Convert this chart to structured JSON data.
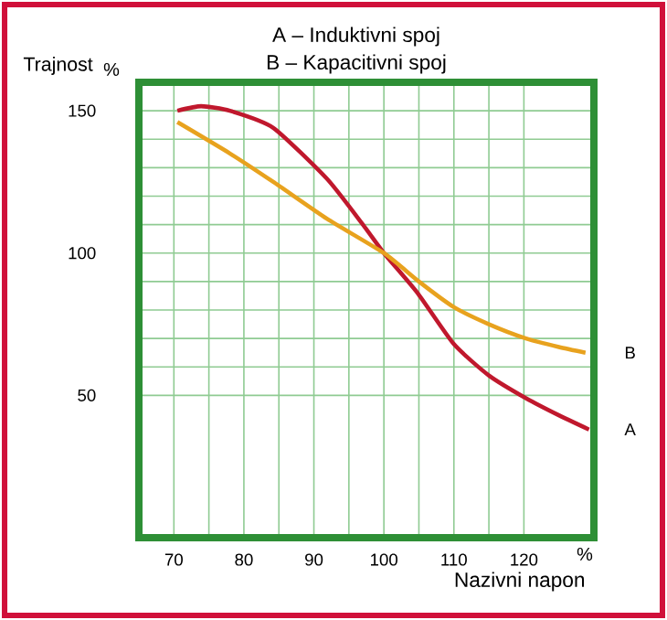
{
  "chart_data": {
    "type": "line",
    "title": "A – Induktivni spoj",
    "subtitle": "B – Kapacitivni spoj",
    "xlabel": "Nazivni napon",
    "ylabel": "Trajnost",
    "annotations": [
      "%",
      "%"
    ],
    "xlim": [
      65,
      130
    ],
    "ylim": [
      0,
      160
    ],
    "xticks": [
      70,
      80,
      90,
      100,
      110,
      120
    ],
    "yticks": [
      50,
      100,
      150
    ],
    "grid": true,
    "series": [
      {
        "name": "A",
        "color": "#c0182d",
        "x": [
          70.5,
          73.9,
          78,
          84.2,
          91.9,
          97,
          100,
          104.8,
          110,
          115,
          120.3,
          125,
          129.3
        ],
        "values": [
          150,
          151.6,
          150,
          144,
          126,
          110,
          100,
          86,
          68,
          57,
          49,
          43,
          38
        ]
      },
      {
        "name": "B",
        "color": "#e8a21e",
        "x": [
          70.5,
          78,
          84.2,
          91.9,
          100,
          105,
          110,
          115,
          120.3,
          125,
          128.8
        ],
        "values": [
          146,
          135,
          125,
          112,
          100,
          90,
          81,
          75,
          70,
          67,
          65
        ]
      }
    ]
  }
}
